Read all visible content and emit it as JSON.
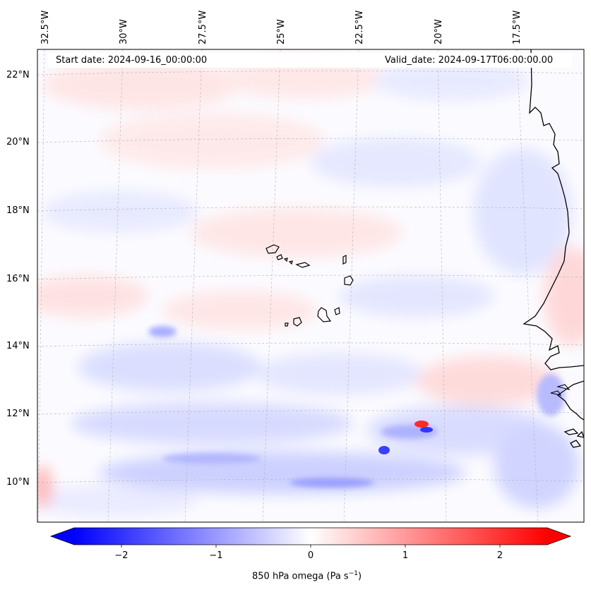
{
  "header": {
    "start_date": "Start date: 2024-09-16_00:00:00",
    "valid_date": "Valid_date: 2024-09-17T06:00:00.00"
  },
  "lon_labels": [
    "32.5°W",
    "30°W",
    "27.5°W",
    "25°W",
    "22.5°W",
    "20°W",
    "17.5°W"
  ],
  "lat_labels": [
    "22°N",
    "20°N",
    "18°N",
    "16°N",
    "14°N",
    "12°N",
    "10°N"
  ],
  "colorbar": {
    "ticks": [
      "−2",
      "−1",
      "0",
      "1",
      "2"
    ],
    "label": "850 hPa omega (Pa s",
    "label_sup": "−1",
    "label_end": ")",
    "min_color": "#0000ff",
    "mid_color": "#ffffff",
    "max_color": "#ff0000"
  },
  "map": {
    "variable": "850 hPa omega",
    "colormap": "bwr",
    "value_range": [
      -2.5,
      2.5
    ],
    "gridlines": true,
    "coastline_color": "#000000",
    "features": [
      "cape-verde-islands",
      "west-africa-coastline"
    ]
  }
}
